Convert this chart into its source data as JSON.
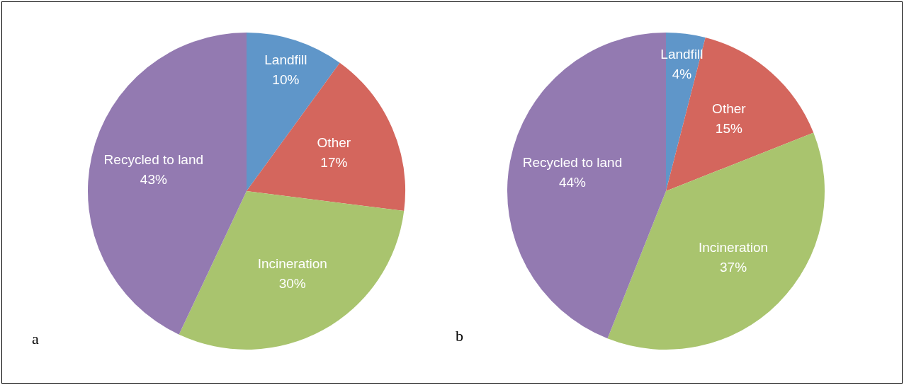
{
  "chart_data": [
    {
      "type": "pie",
      "categories": [
        "Landfill",
        "Other",
        "Incineration",
        "Recycled to land"
      ],
      "values": [
        10,
        17,
        30,
        43
      ],
      "value_labels": [
        "10%",
        "17%",
        "30%",
        "43%"
      ],
      "colors": [
        "#5f96c9",
        "#d4665d",
        "#a9c46e",
        "#937ab1"
      ],
      "legend": false,
      "annotations": [
        "a"
      ]
    },
    {
      "type": "pie",
      "categories": [
        "Landfill",
        "Other",
        "Incineration",
        "Recycled to land"
      ],
      "values": [
        4,
        15,
        37,
        44
      ],
      "value_labels": [
        "4%",
        "15%",
        "37%",
        "44%"
      ],
      "colors": [
        "#5f96c9",
        "#d4665d",
        "#a9c46e",
        "#937ab1"
      ],
      "legend": false,
      "annotations": [
        "b"
      ]
    }
  ]
}
